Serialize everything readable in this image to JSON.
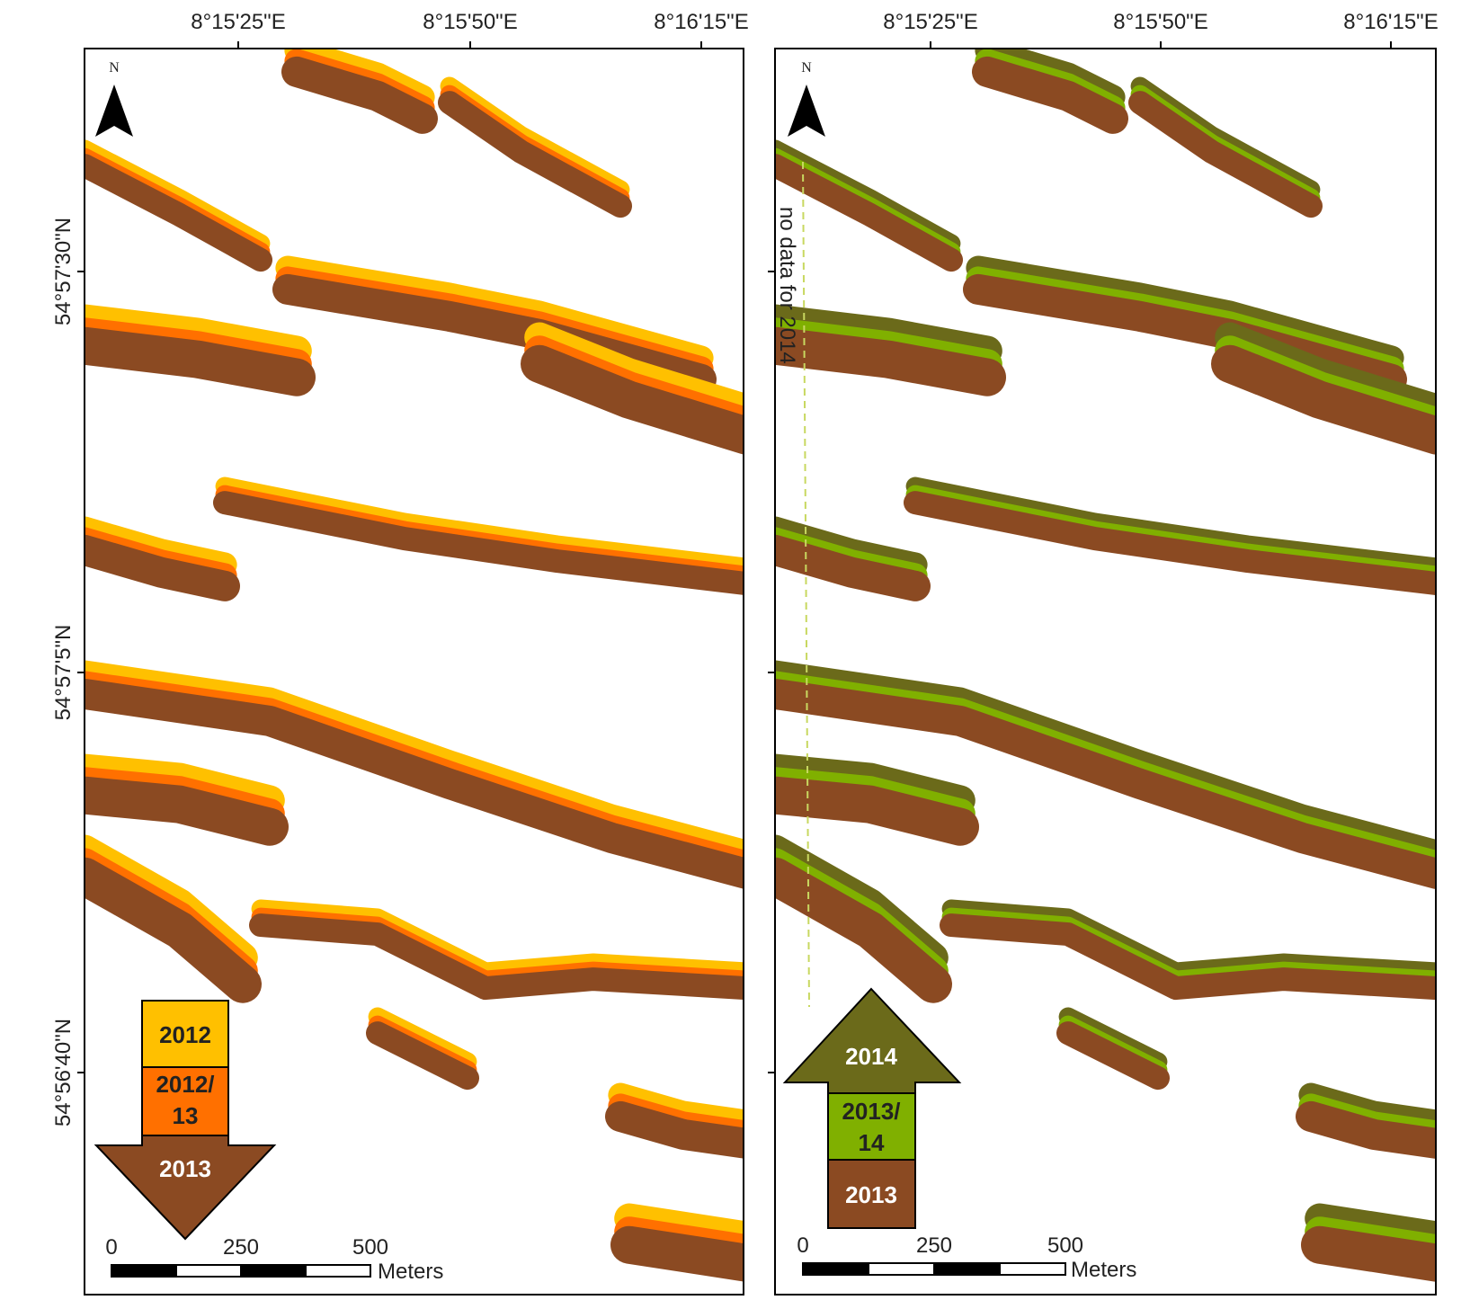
{
  "map": {
    "panels": [
      {
        "lon_labels": [
          "8°15'25\"E",
          "8°15'50\"E",
          "8°16'15\"E"
        ],
        "lat_labels": [
          "54°57'30\"N",
          "54°57'5\"N",
          "54°56'40\"N"
        ],
        "north": "N",
        "legend": [
          [
            "2012"
          ],
          [
            "2012/",
            "13"
          ],
          [
            "2013"
          ]
        ],
        "scale_bar": {
          "labels": [
            "0",
            "250",
            "500"
          ],
          "unit": "Meters"
        }
      },
      {
        "lon_labels": [
          "8°15'25\"E",
          "8°15'50\"E",
          "8°16'15\"E"
        ],
        "north": "N",
        "annotation": "no data for 2014",
        "legend": [
          [
            "2014"
          ],
          [
            "2013/",
            "14"
          ],
          [
            "2013"
          ]
        ],
        "scale_bar": {
          "labels": [
            "0",
            "250",
            "500"
          ],
          "unit": "Meters"
        }
      }
    ]
  }
}
